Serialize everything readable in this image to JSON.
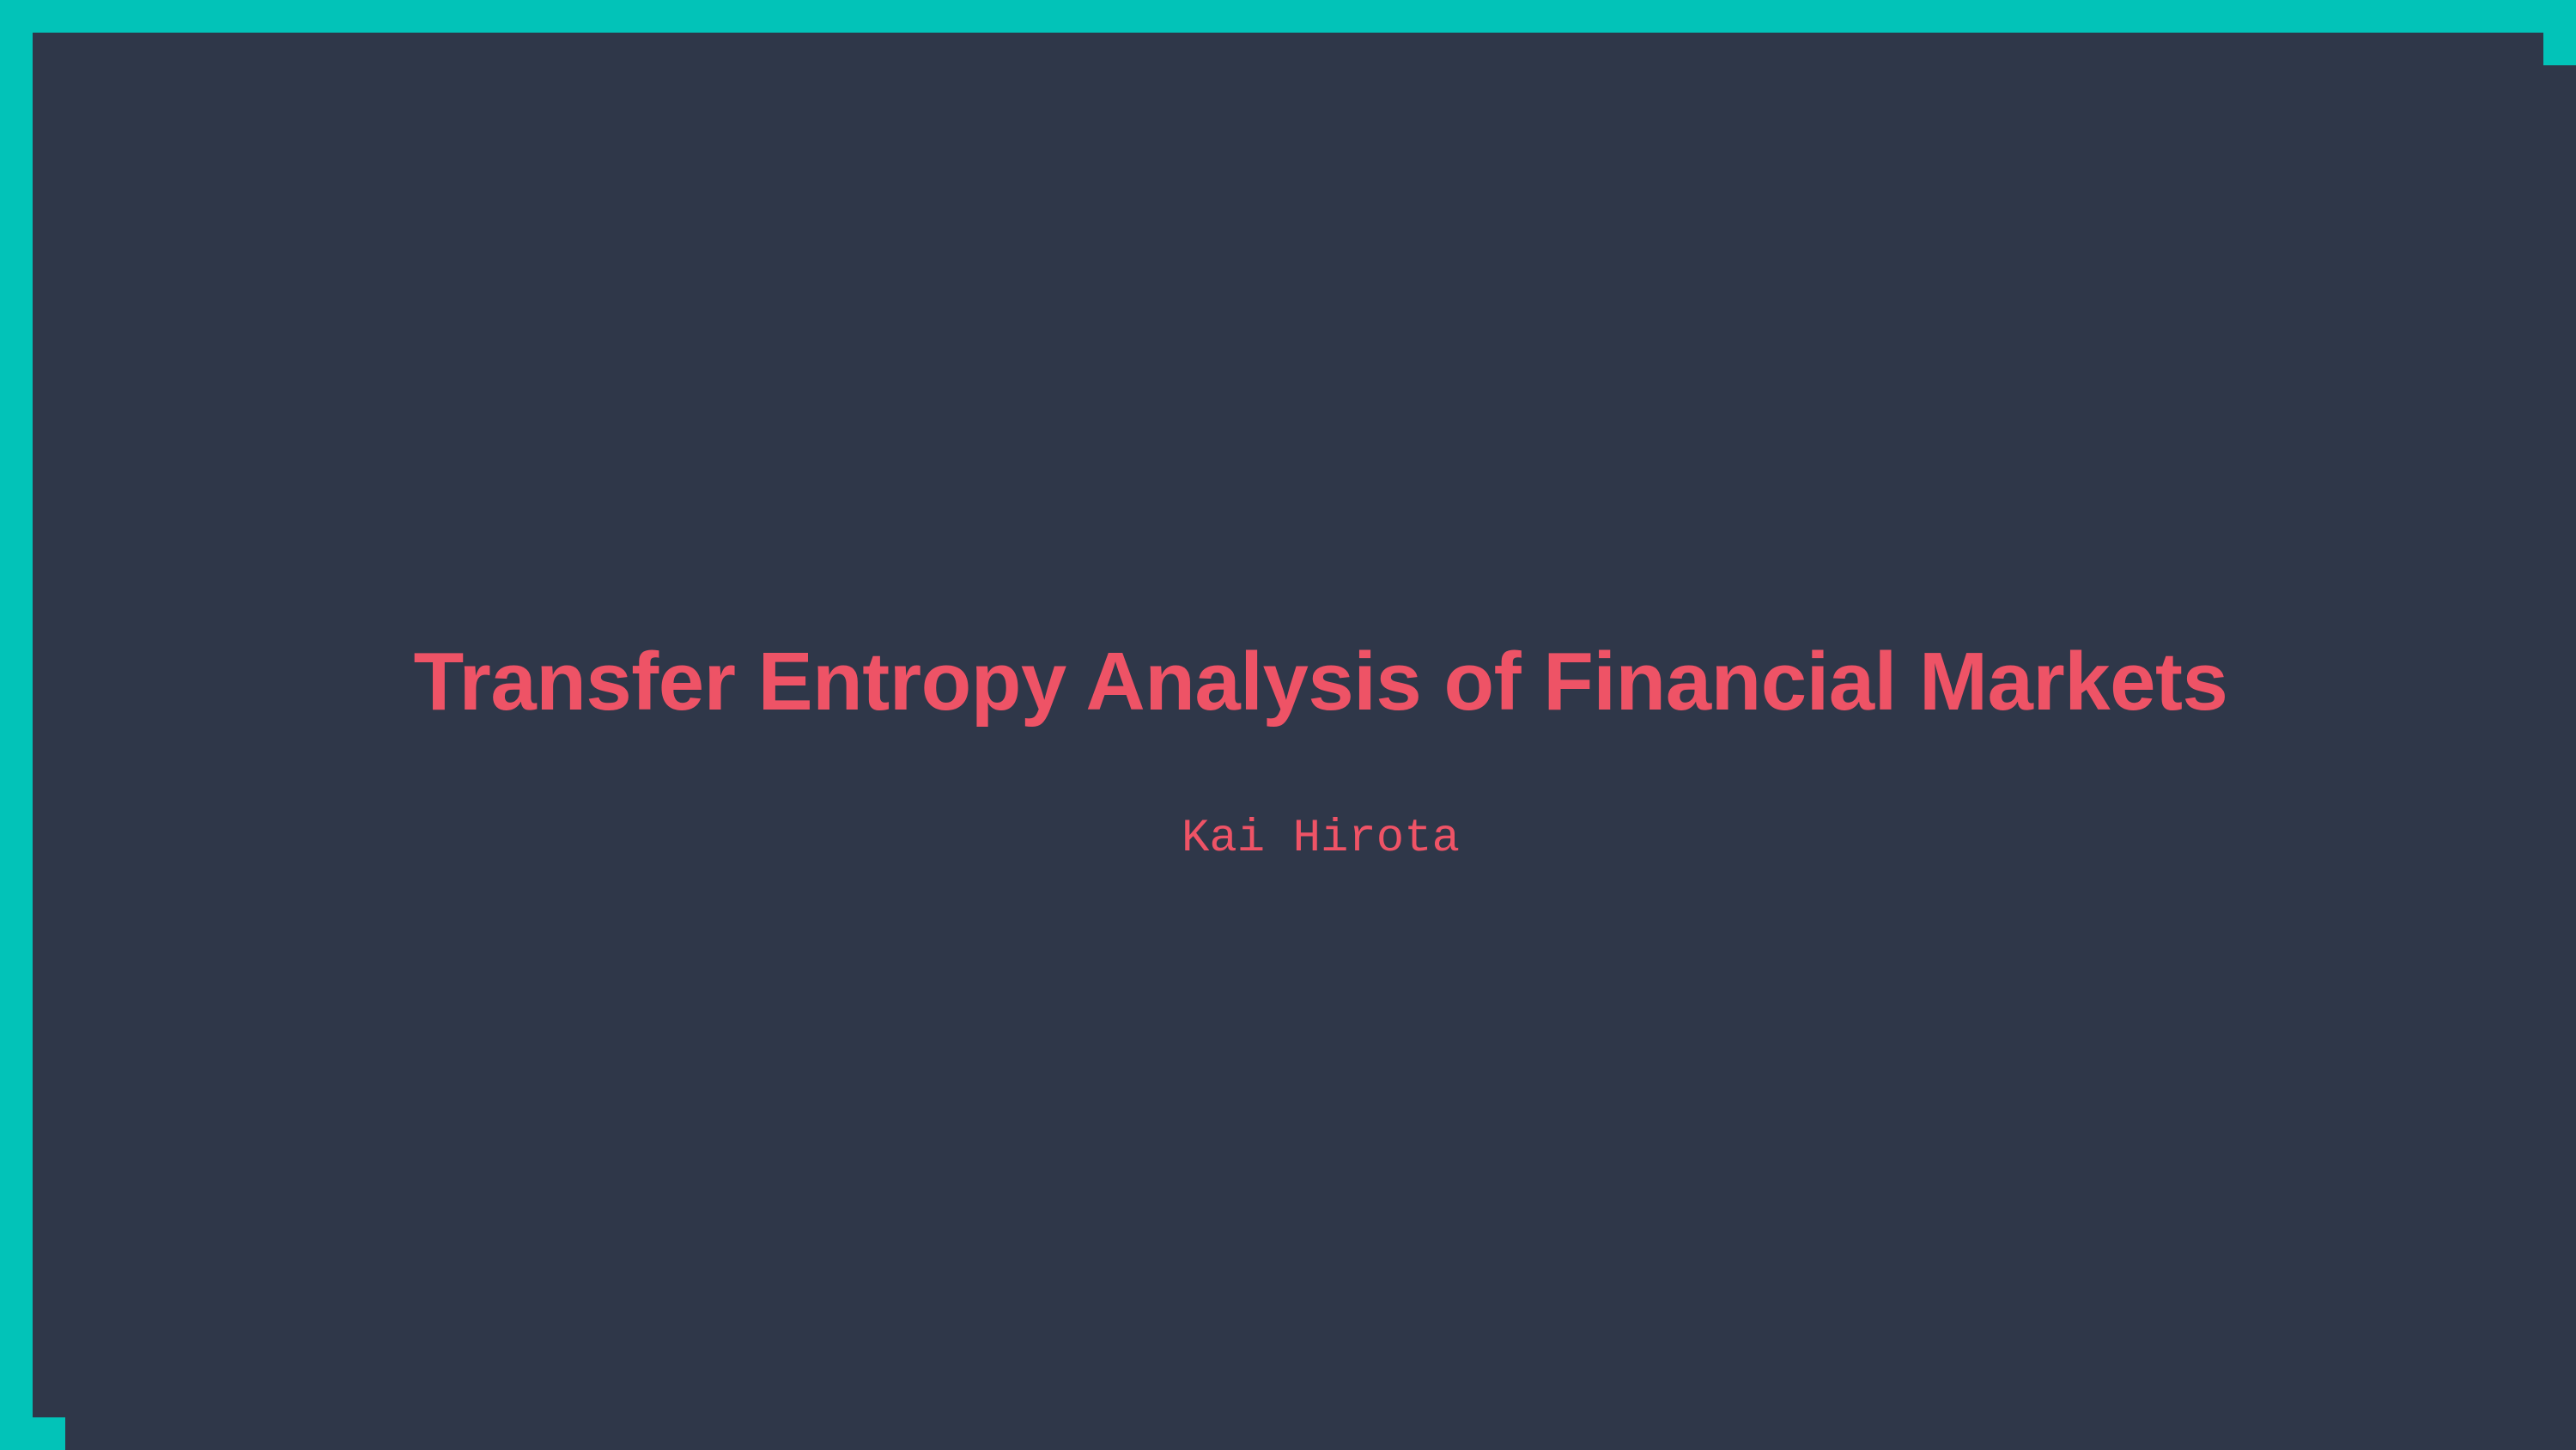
{
  "slide": {
    "title": "Transfer Entropy Analysis of Financial Markets",
    "author": "Kai Hirota"
  },
  "colors": {
    "frame": "#02c3b8",
    "background": "#2f3749",
    "text": "#ee5366"
  }
}
